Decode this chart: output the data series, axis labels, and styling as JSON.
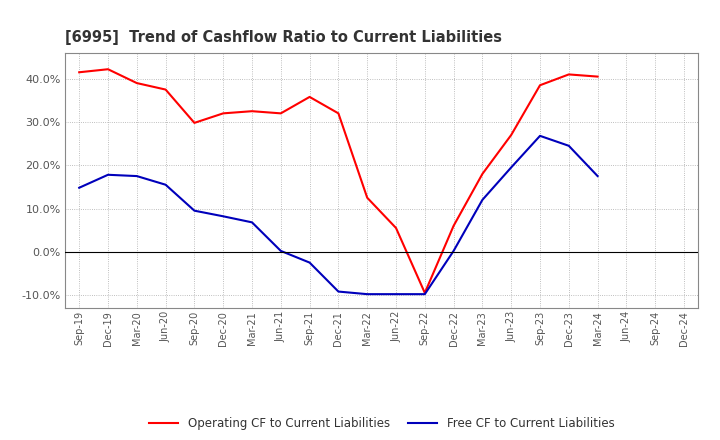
{
  "title": "[6995]  Trend of Cashflow Ratio to Current Liabilities",
  "x_labels": [
    "Sep-19",
    "Dec-19",
    "Mar-20",
    "Jun-20",
    "Sep-20",
    "Dec-20",
    "Mar-21",
    "Jun-21",
    "Sep-21",
    "Dec-21",
    "Mar-22",
    "Jun-22",
    "Sep-22",
    "Dec-22",
    "Mar-23",
    "Jun-23",
    "Sep-23",
    "Dec-23",
    "Mar-24",
    "Jun-24",
    "Sep-24",
    "Dec-24"
  ],
  "operating_cf": [
    0.415,
    0.422,
    0.39,
    0.375,
    0.298,
    0.32,
    0.325,
    0.32,
    0.358,
    0.32,
    0.125,
    0.055,
    -0.095,
    0.06,
    0.18,
    0.27,
    0.385,
    0.41,
    0.405,
    null,
    null,
    null
  ],
  "free_cf": [
    0.148,
    0.178,
    0.175,
    0.155,
    0.095,
    0.082,
    0.068,
    0.002,
    -0.025,
    -0.092,
    -0.098,
    -0.098,
    -0.098,
    0.002,
    0.12,
    0.195,
    0.268,
    0.245,
    0.175,
    null,
    null,
    null
  ],
  "operating_color": "#FF0000",
  "free_color": "#0000BB",
  "ylim": [
    -0.13,
    0.46
  ],
  "yticks": [
    -0.1,
    0.0,
    0.1,
    0.2,
    0.3,
    0.4
  ],
  "background_color": "#FFFFFF",
  "grid_color": "#AAAAAA",
  "legend_op": "Operating CF to Current Liabilities",
  "legend_free": "Free CF to Current Liabilities"
}
